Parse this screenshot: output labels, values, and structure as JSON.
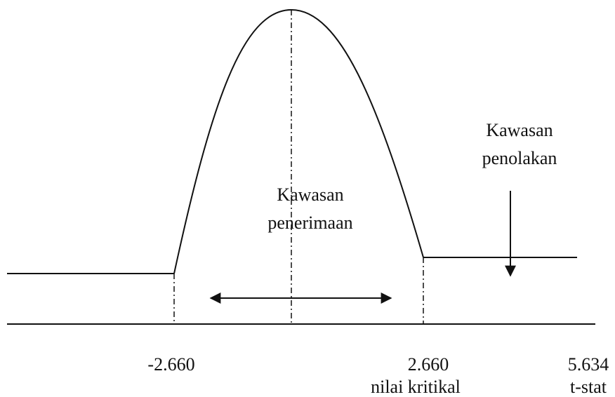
{
  "acceptance_region": {
    "lines": [
      "Kawasan",
      "penerimaan"
    ]
  },
  "rejection_region": {
    "lines": [
      "Kawasan",
      "penolakan"
    ]
  },
  "axis_labels": {
    "lower_critical": "-2.660",
    "upper_critical": "2.660",
    "critical_caption": "nilai kritikal",
    "statistic": "5.634",
    "statistic_caption": "t-stat"
  }
}
